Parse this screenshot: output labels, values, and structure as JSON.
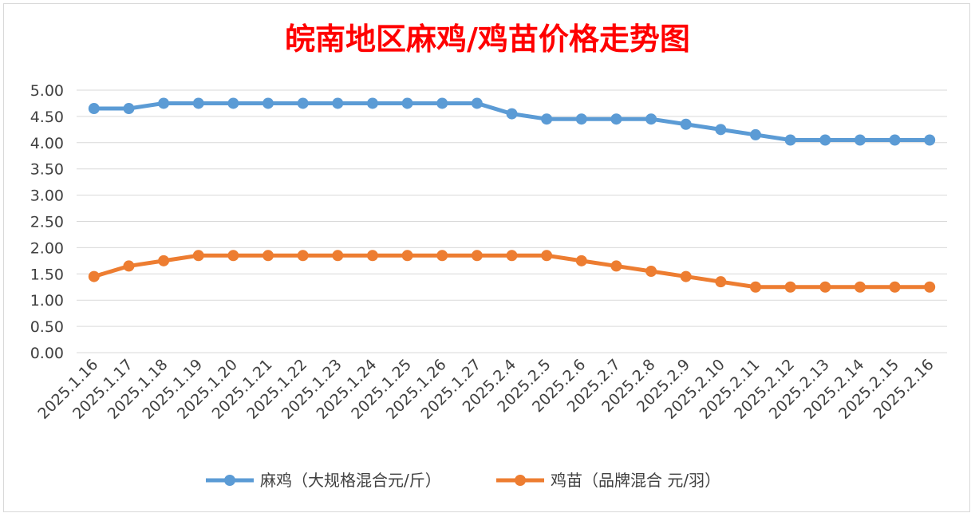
{
  "chart_data": {
    "type": "line",
    "title": "皖南地区麻鸡/鸡苗价格走势图",
    "xlabel": "",
    "ylabel": "",
    "ylim": [
      0,
      5
    ],
    "y_ticks": [
      "0.00",
      "0.50",
      "1.00",
      "1.50",
      "2.00",
      "2.50",
      "3.00",
      "3.50",
      "4.00",
      "4.50",
      "5.00"
    ],
    "grid": true,
    "legend_position": "bottom",
    "categories": [
      "2025.1.16",
      "2025.1.17",
      "2025.1.18",
      "2025.1.19",
      "2025.1.20",
      "2025.1.21",
      "2025.1.22",
      "2025.1.23",
      "2025.1.24",
      "2025.1.25",
      "2025.1.26",
      "2025.1.27",
      "2025.2.4",
      "2025.2.5",
      "2025.2.6",
      "2025.2.7",
      "2025.2.8",
      "2025.2.9",
      "2025.2.10",
      "2025.2.11",
      "2025.2.12",
      "2025.2.13",
      "2025.2.14",
      "2025.2.15",
      "2025.2.16"
    ],
    "series": [
      {
        "name": "麻鸡（大规格混合元/斤）",
        "color": "#5b9bd5",
        "values": [
          4.65,
          4.65,
          4.75,
          4.75,
          4.75,
          4.75,
          4.75,
          4.75,
          4.75,
          4.75,
          4.75,
          4.75,
          4.55,
          4.45,
          4.45,
          4.45,
          4.45,
          4.35,
          4.25,
          4.15,
          4.05,
          4.05,
          4.05,
          4.05,
          4.05
        ]
      },
      {
        "name": "鸡苗（品牌混合 元/羽）",
        "color": "#ed7d31",
        "values": [
          1.45,
          1.65,
          1.75,
          1.85,
          1.85,
          1.85,
          1.85,
          1.85,
          1.85,
          1.85,
          1.85,
          1.85,
          1.85,
          1.85,
          1.75,
          1.65,
          1.55,
          1.45,
          1.35,
          1.25,
          1.25,
          1.25,
          1.25,
          1.25,
          1.25
        ]
      }
    ]
  }
}
